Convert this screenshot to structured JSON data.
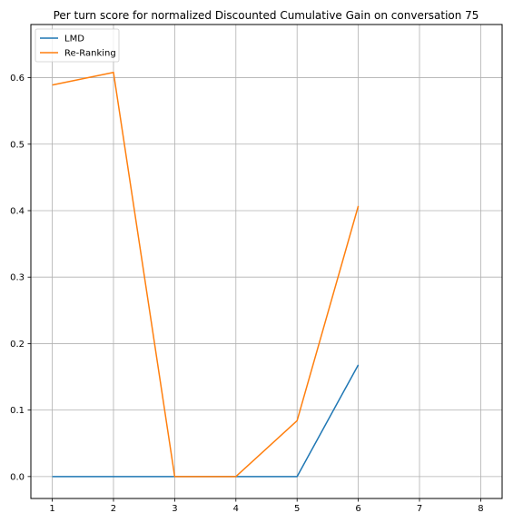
{
  "chart_data": {
    "type": "line",
    "title": "Per turn score for normalized Discounted Cumulative Gain on conversation 75",
    "xlabel": "",
    "ylabel": "",
    "x_ticks": [
      1,
      2,
      3,
      4,
      5,
      6,
      7,
      8
    ],
    "y_ticks": [
      0.0,
      0.1,
      0.2,
      0.3,
      0.4,
      0.5,
      0.6
    ],
    "y_tick_labels": [
      "0.0",
      "0.1",
      "0.2",
      "0.3",
      "0.4",
      "0.5",
      "0.6"
    ],
    "xlim": [
      0.65,
      8.35
    ],
    "ylim": [
      -0.033,
      0.68
    ],
    "grid": true,
    "legend_position": "top-left",
    "series": [
      {
        "name": "LMD",
        "color": "#1f77b4",
        "x": [
          1,
          2,
          3,
          4,
          5,
          6
        ],
        "y": [
          0.0,
          0.0,
          0.0,
          0.0,
          0.0,
          0.168
        ]
      },
      {
        "name": "Re-Ranking",
        "color": "#ff7f0e",
        "x": [
          1,
          2,
          3,
          4,
          5,
          6
        ],
        "y": [
          0.589,
          0.608,
          0.0,
          0.0,
          0.084,
          0.407
        ]
      }
    ]
  }
}
